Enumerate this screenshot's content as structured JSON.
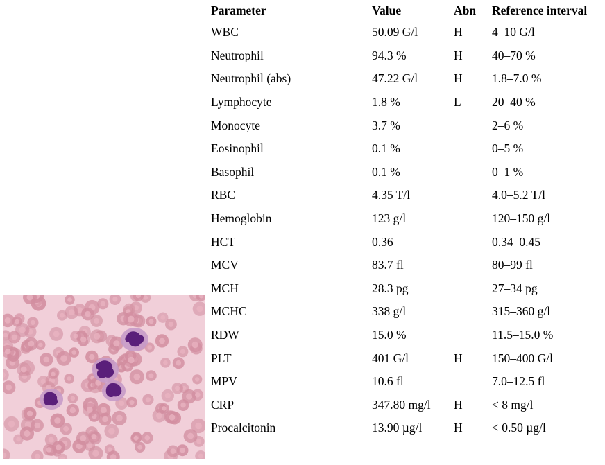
{
  "table": {
    "headers": [
      "Parameter",
      "Value",
      "Abn",
      "Reference interval"
    ],
    "rows": [
      {
        "parameter": "WBC",
        "value": "50.09 G/l",
        "abn": "H",
        "reference": "4–10 G/l"
      },
      {
        "parameter": "Neutrophil",
        "value": "94.3 %",
        "abn": "H",
        "reference": "40–70 %"
      },
      {
        "parameter": "Neutrophil (abs)",
        "value": "47.22 G/l",
        "abn": "H",
        "reference": "1.8–7.0 %"
      },
      {
        "parameter": "Lymphocyte",
        "value": "1.8 %",
        "abn": "L",
        "reference": "20–40 %"
      },
      {
        "parameter": "Monocyte",
        "value": "3.7 %",
        "abn": "",
        "reference": "2–6 %"
      },
      {
        "parameter": "Eosinophil",
        "value": "0.1 %",
        "abn": "",
        "reference": "0–5 %"
      },
      {
        "parameter": "Basophil",
        "value": "0.1 %",
        "abn": "",
        "reference": "0–1 %"
      },
      {
        "parameter": "RBC",
        "value": "4.35 T/l",
        "abn": "",
        "reference": "4.0–5.2 T/l"
      },
      {
        "parameter": "Hemoglobin",
        "value": "123 g/l",
        "abn": "",
        "reference": "120–150 g/l"
      },
      {
        "parameter": "HCT",
        "value": "0.36",
        "abn": "",
        "reference": "0.34–0.45"
      },
      {
        "parameter": "MCV",
        "value": "83.7 fl",
        "abn": "",
        "reference": "80–99 fl"
      },
      {
        "parameter": "MCH",
        "value": "28.3 pg",
        "abn": "",
        "reference": "27–34 pg"
      },
      {
        "parameter": "MCHC",
        "value": "338 g/l",
        "abn": "",
        "reference": "315–360 g/l"
      },
      {
        "parameter": "RDW",
        "value": "15.0 %",
        "abn": "",
        "reference": "11.5–15.0 %"
      },
      {
        "parameter": "PLT",
        "value": "401 G/l",
        "abn": "H",
        "reference": "150–400 G/l"
      },
      {
        "parameter": "MPV",
        "value": "10.6 fl",
        "abn": "",
        "reference": "7.0–12.5 fl"
      },
      {
        "parameter": "CRP",
        "value": "347.80 mg/l",
        "abn": "H",
        "reference": "< 8 mg/l"
      },
      {
        "parameter": "Procalcitonin",
        "value": "13.90 µg/l",
        "abn": "H",
        "reference": "< 0.50  µg/l"
      }
    ]
  },
  "image": {
    "subject": "blood-smear-micrograph",
    "colors": {
      "background": "#f1cfd9",
      "rbc": "#d28ea0",
      "rbc_center": "#e8b3c1",
      "nucleus": "#5a1f7a",
      "cytoplasm": "#c79ac8"
    }
  }
}
